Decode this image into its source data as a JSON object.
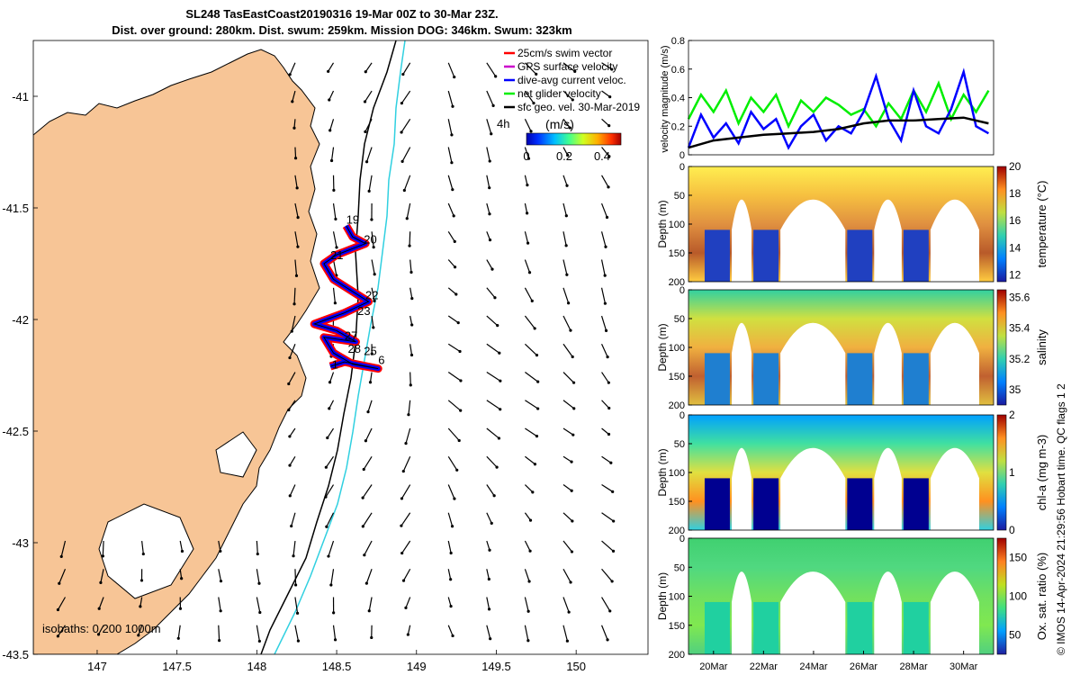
{
  "title": {
    "line1": "SL248 TasEastCoast20190316 19-Mar 00Z to 30-Mar 23Z.",
    "line2": "Dist. over ground: 280km. Dist. swum: 259km. Mission DOG: 346km. Swum: 323km"
  },
  "credit": "© IMOS 14-Apr-2024 21:29:56 Hobart time. QC flags 1  2",
  "colors": {
    "land": "#f7c596",
    "water": "#ffffff",
    "isobath_200": "#000000",
    "isobath_1000": "#30d0e0",
    "gps_velocity": "#ff0000",
    "dive_avg_current": "#0000ff",
    "net_glider": "#00ee00",
    "sfc_geo": "#000000"
  },
  "map": {
    "x_ticks": [
      "147",
      "147.5",
      "148",
      "148.5",
      "149",
      "149.5",
      "150"
    ],
    "y_ticks": [
      "-41",
      "-41.5",
      "-42",
      "-42.5",
      "-43",
      "-43.5"
    ],
    "xlim": [
      146.6,
      150.45
    ],
    "ylim": [
      -43.5,
      -40.75
    ],
    "isobath_label": "isobaths: 0   200   1000m",
    "legend": {
      "items": [
        {
          "name": "25cm/s swim vector",
          "color": "#ff0000"
        },
        {
          "name": "GPS surface velocity",
          "color": "#cc00cc"
        },
        {
          "name": "dive-avg current veloc.",
          "color": "#0000ff"
        },
        {
          "name": "net glider velocity",
          "color": "#00ee00"
        },
        {
          "name": "sfc geo. vel. 30-Mar-2019",
          "color": "#000000"
        }
      ],
      "extra_label": "4h"
    },
    "colorbar": {
      "label": "(m/s)",
      "ticks": [
        "0",
        "0.2",
        "0.4"
      ],
      "range": [
        0,
        0.5
      ]
    },
    "day_labels": [
      {
        "text": "19",
        "lon": 148.56,
        "lat": -41.57
      },
      {
        "text": "20",
        "lon": 148.67,
        "lat": -41.66
      },
      {
        "text": "21",
        "lon": 148.46,
        "lat": -41.73
      },
      {
        "text": "22",
        "lon": 148.68,
        "lat": -41.91
      },
      {
        "text": "23",
        "lon": 148.63,
        "lat": -41.98
      },
      {
        "text": "27",
        "lon": 148.55,
        "lat": -42.09
      },
      {
        "text": "28",
        "lon": 148.57,
        "lat": -42.15
      },
      {
        "text": "25",
        "lon": 148.67,
        "lat": -42.16
      },
      {
        "text": "1",
        "lon": 148.47,
        "lat": -42.22
      },
      {
        "text": "6",
        "lon": 148.76,
        "lat": -42.2
      }
    ]
  },
  "chart_data": [
    {
      "type": "line",
      "panel": "velocity",
      "ylabel": "velocity magnitude (m/s)",
      "ylim": [
        0,
        0.8
      ],
      "y_ticks": [
        "0",
        "0.2",
        "0.4",
        "0.6",
        "0.8"
      ],
      "xlim": [
        19,
        31.2
      ],
      "series": [
        {
          "color": "#00ee00",
          "x": [
            19,
            19.5,
            20,
            20.5,
            21,
            21.5,
            22,
            22.5,
            23,
            23.5,
            24,
            24.5,
            25,
            25.5,
            26,
            26.5,
            27,
            27.5,
            28,
            28.5,
            29,
            29.5,
            30,
            30.5,
            31
          ],
          "y": [
            0.25,
            0.42,
            0.3,
            0.45,
            0.22,
            0.4,
            0.3,
            0.42,
            0.2,
            0.38,
            0.3,
            0.4,
            0.35,
            0.28,
            0.32,
            0.2,
            0.36,
            0.25,
            0.45,
            0.3,
            0.5,
            0.25,
            0.42,
            0.3,
            0.45
          ]
        },
        {
          "color": "#0000ff",
          "x": [
            19,
            19.5,
            20,
            20.5,
            21,
            21.5,
            22,
            22.5,
            23,
            23.5,
            24,
            24.5,
            25,
            25.5,
            26,
            26.5,
            27,
            27.5,
            28,
            28.5,
            29,
            29.5,
            30,
            30.5,
            31
          ],
          "y": [
            0.05,
            0.28,
            0.12,
            0.22,
            0.08,
            0.3,
            0.18,
            0.25,
            0.05,
            0.2,
            0.28,
            0.1,
            0.2,
            0.15,
            0.3,
            0.55,
            0.25,
            0.1,
            0.45,
            0.2,
            0.15,
            0.32,
            0.58,
            0.2,
            0.15
          ]
        },
        {
          "color": "#000000",
          "x": [
            19,
            20,
            21,
            22,
            23,
            24,
            25,
            26,
            27,
            28,
            29,
            30,
            31
          ],
          "y": [
            0.05,
            0.1,
            0.12,
            0.14,
            0.15,
            0.16,
            0.18,
            0.22,
            0.24,
            0.24,
            0.25,
            0.26,
            0.22
          ]
        }
      ]
    },
    {
      "type": "heatmap",
      "panel": "temperature",
      "ylabel": "Depth (m)",
      "cbar_label": "temperature (°C)",
      "clim": [
        11.5,
        20
      ],
      "cbar_ticks": [
        "12",
        "14",
        "16",
        "18",
        "20"
      ],
      "y_ticks": [
        "0",
        "50",
        "100",
        "150",
        "200"
      ]
    },
    {
      "type": "heatmap",
      "panel": "salinity",
      "ylabel": "Depth (m)",
      "cbar_label": "salinity",
      "clim": [
        34.9,
        35.65
      ],
      "cbar_ticks": [
        "35",
        "35.2",
        "35.4",
        "35.6"
      ],
      "y_ticks": [
        "0",
        "50",
        "100",
        "150",
        "200"
      ]
    },
    {
      "type": "heatmap",
      "panel": "chla",
      "ylabel": "Depth (m)",
      "cbar_label": "chl-a (mg m-3)",
      "clim": [
        0,
        2
      ],
      "cbar_ticks": [
        "0",
        "1",
        "2"
      ],
      "y_ticks": [
        "0",
        "50",
        "100",
        "150",
        "200"
      ]
    },
    {
      "type": "heatmap",
      "panel": "oxygen",
      "ylabel": "Depth (m)",
      "cbar_label": "Ox. sat. ratio (%)",
      "clim": [
        25,
        175
      ],
      "cbar_ticks": [
        "50",
        "100",
        "150"
      ],
      "y_ticks": [
        "0",
        "50",
        "100",
        "150",
        "200"
      ],
      "x_ticks": [
        "20Mar",
        "22Mar",
        "24Mar",
        "26Mar",
        "28Mar",
        "30Mar"
      ]
    }
  ]
}
